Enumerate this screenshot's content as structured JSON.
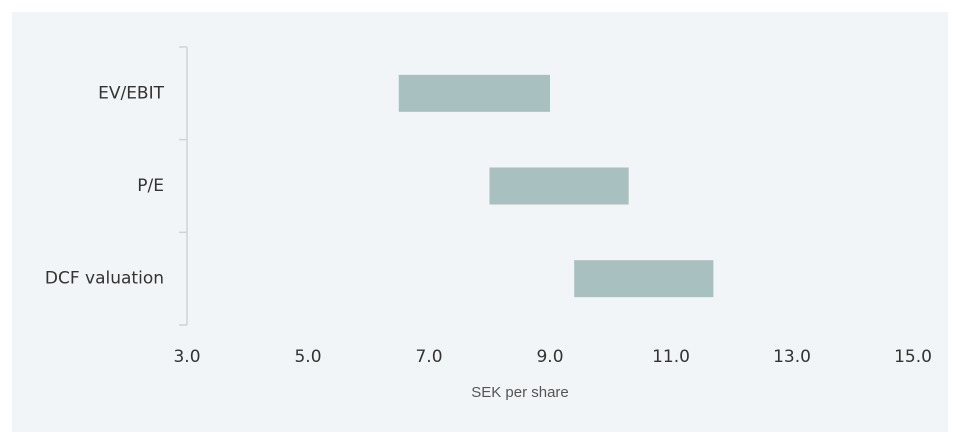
{
  "chart_data": {
    "type": "floating_bar",
    "orientation": "horizontal",
    "categories": [
      "EV/EBIT",
      "P/E",
      "DCF valuation"
    ],
    "start": [
      6.5,
      8.0,
      9.4
    ],
    "end": [
      9.0,
      10.3,
      11.7
    ],
    "color": "#a8c0c0",
    "x_label": "SEK per share",
    "xlim": [
      3,
      15
    ],
    "xticks": [
      {
        "value": 3,
        "label": "3.0"
      },
      {
        "value": 5,
        "label": "5.0"
      },
      {
        "value": 7,
        "label": "7.0"
      },
      {
        "value": 9,
        "label": "9.0"
      },
      {
        "value": 11,
        "label": "11.0"
      },
      {
        "value": 13,
        "label": "13.0"
      },
      {
        "value": 15,
        "label": "15.0"
      }
    ],
    "grid": false
  }
}
